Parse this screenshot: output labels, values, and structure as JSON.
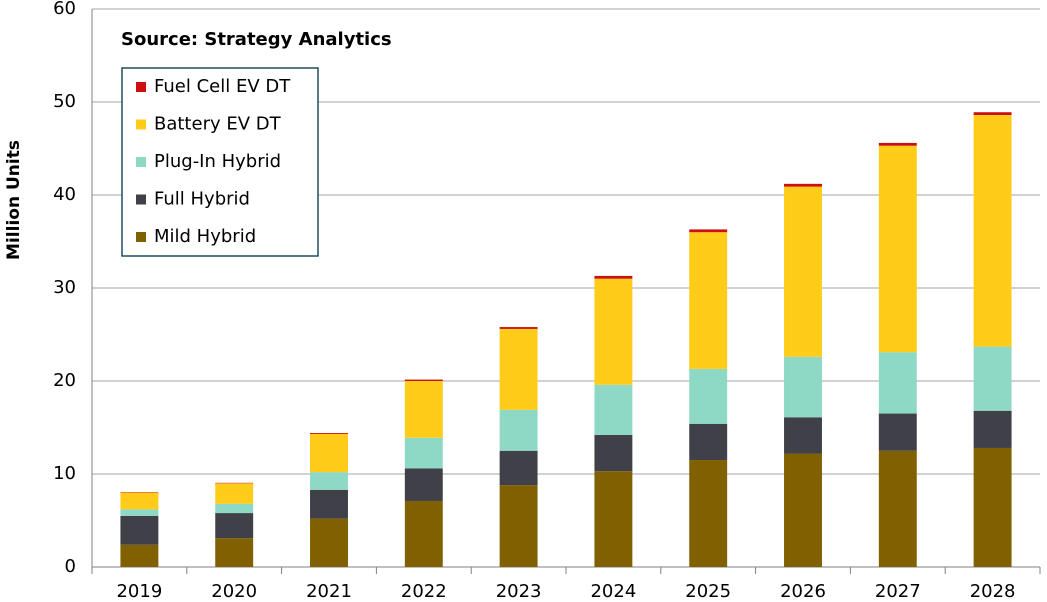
{
  "chart_data": {
    "type": "stacked_bar",
    "annotation": "Source: Strategy Analytics",
    "y_label": "Million Units",
    "categories": [
      "2019",
      "2020",
      "2021",
      "2022",
      "2023",
      "2024",
      "2025",
      "2026",
      "2027",
      "2028"
    ],
    "series": [
      {
        "name": "Mild Hybrid",
        "color": "#806000",
        "values": [
          2.4,
          3.1,
          5.2,
          7.1,
          8.8,
          10.3,
          11.5,
          12.2,
          12.5,
          12.8
        ]
      },
      {
        "name": "Full Hybrid",
        "color": "#404048",
        "values": [
          3.1,
          2.7,
          3.1,
          3.5,
          3.7,
          3.9,
          3.9,
          3.9,
          4.0,
          4.0
        ]
      },
      {
        "name": "Plug-In Hybrid",
        "color": "#8ed9c6",
        "values": [
          0.7,
          1.0,
          1.9,
          3.3,
          4.4,
          5.4,
          5.9,
          6.5,
          6.6,
          6.9
        ]
      },
      {
        "name": "Battery EV DT",
        "color": "#ffcc1a",
        "values": [
          1.8,
          2.2,
          4.1,
          6.1,
          8.7,
          11.4,
          14.7,
          18.3,
          22.2,
          24.9
        ]
      },
      {
        "name": "Fuel Cell EV DT",
        "color": "#cc1010",
        "values": [
          0.05,
          0.05,
          0.1,
          0.15,
          0.2,
          0.3,
          0.3,
          0.3,
          0.3,
          0.3
        ]
      }
    ],
    "ylim": [
      0,
      60
    ],
    "yticks": [
      0,
      10,
      20,
      30,
      40,
      50,
      60
    ],
    "grid": true
  }
}
